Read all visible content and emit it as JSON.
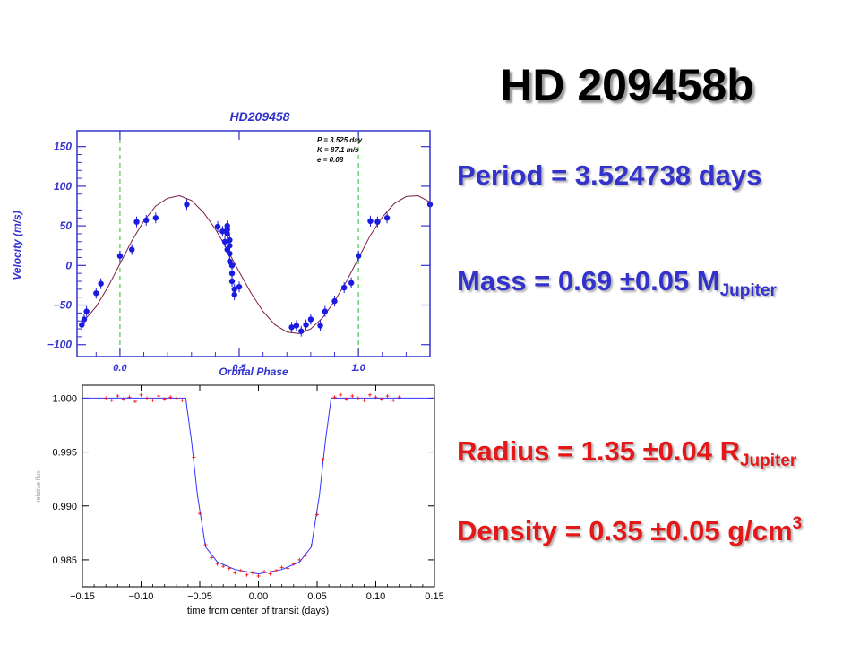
{
  "slide_title": "HD 209458b",
  "facts": {
    "period": {
      "text": "Period = 3.524738 days"
    },
    "mass": {
      "text": "Mass = 0.69 ±0.05 M",
      "sub": "Jupiter"
    },
    "radius": {
      "text": "Radius = 1.35 ±0.04 R",
      "sub": "Jupiter"
    },
    "density": {
      "text": "Density = 0.35 ±0.05 g/cm",
      "sup": "3"
    }
  },
  "colors": {
    "title_text": "#000000",
    "fact_blue": "#3333cc",
    "fact_red": "#e41818",
    "rv_axis": "#3333cc",
    "rv_points": "#1a1ae0",
    "rv_curve": "#7a1f4a",
    "rv_marker_lines": "#44cc44",
    "transit_model": "#3333ff",
    "transit_points": "#ff0000"
  },
  "chart_data": [
    {
      "type": "scatter",
      "title": "HD209458",
      "xlabel": "Orbital Phase",
      "ylabel": "Velocity (m/s)",
      "xlim": [
        -0.18,
        1.3
      ],
      "ylim": [
        -115,
        170
      ],
      "x_ticks": [
        0.0,
        0.5,
        1.0
      ],
      "x_tick_labels": [
        "0.0",
        "0.5",
        "1.0"
      ],
      "y_ticks": [
        150,
        100,
        50,
        0,
        -50,
        -100
      ],
      "y_tick_labels": [
        "150",
        "100",
        "50",
        "0",
        "−50",
        "−100"
      ],
      "annotation_lines": [
        "P = 3.525 day",
        "K = 87.1 m/s",
        "e = 0.08"
      ],
      "vertical_markers": [
        0.0,
        1.0
      ],
      "series": [
        {
          "type": "line",
          "note": "orbit fit",
          "x": [
            -0.16,
            -0.1,
            -0.05,
            0.0,
            0.05,
            0.1,
            0.15,
            0.2,
            0.25,
            0.3,
            0.35,
            0.4,
            0.45,
            0.5,
            0.55,
            0.6,
            0.65,
            0.7,
            0.75,
            0.8,
            0.85,
            0.9,
            0.95,
            1.0,
            1.05,
            1.1,
            1.15,
            1.2,
            1.25,
            1.3
          ],
          "y": [
            -73,
            -52,
            -27,
            2,
            31,
            56,
            75,
            85,
            88,
            82,
            67,
            46,
            20,
            -8,
            -35,
            -58,
            -75,
            -84,
            -86,
            -80,
            -66,
            -45,
            -20,
            9,
            38,
            61,
            78,
            87,
            88,
            80
          ]
        },
        {
          "type": "scatter",
          "note": "radial velocity measurements",
          "x": [
            -0.16,
            -0.15,
            -0.14,
            -0.1,
            -0.08,
            0.0,
            0.05,
            0.07,
            0.11,
            0.15,
            0.28,
            0.41,
            0.43,
            0.44,
            0.45,
            0.45,
            0.45,
            0.45,
            0.46,
            0.46,
            0.46,
            0.46,
            0.47,
            0.47,
            0.47,
            0.48,
            0.48,
            0.5,
            0.72,
            0.74,
            0.76,
            0.78,
            0.8,
            0.84,
            0.86,
            0.9,
            0.94,
            0.97,
            1.0,
            1.05,
            1.08,
            1.12,
            1.3
          ],
          "y": [
            -75,
            -68,
            -58,
            -35,
            -23,
            12,
            20,
            55,
            57,
            60,
            77,
            49,
            43,
            30,
            50,
            45,
            40,
            20,
            32,
            25,
            15,
            5,
            0,
            -10,
            -20,
            -30,
            -37,
            -27,
            -78,
            -76,
            -83,
            -75,
            -68,
            -76,
            -58,
            -45,
            -28,
            -22,
            12,
            56,
            55,
            60,
            77
          ]
        }
      ]
    },
    {
      "type": "scatter",
      "xlabel": "time from center of transit (days)",
      "ylabel": "relative flux",
      "xlim": [
        -0.15,
        0.15
      ],
      "ylim": [
        0.9825,
        1.0012
      ],
      "x_ticks": [
        -0.15,
        -0.1,
        -0.05,
        0.0,
        0.05,
        0.1,
        0.15
      ],
      "x_tick_labels": [
        "−0.15",
        "−0.10",
        "−0.05",
        "0.00",
        "0.05",
        "0.10",
        "0.15"
      ],
      "y_ticks": [
        1.0,
        0.995,
        0.99,
        0.985
      ],
      "y_tick_labels": [
        "1.000",
        "0.995",
        "0.990",
        "0.985"
      ],
      "series": [
        {
          "type": "line",
          "note": "transit model",
          "x": [
            -0.15,
            -0.062,
            -0.057,
            -0.052,
            -0.045,
            -0.035,
            -0.02,
            0.0,
            0.02,
            0.035,
            0.045,
            0.052,
            0.057,
            0.062,
            0.15
          ],
          "y": [
            1.0,
            1.0,
            0.996,
            0.991,
            0.9862,
            0.9848,
            0.9841,
            0.9837,
            0.9841,
            0.9848,
            0.9862,
            0.991,
            0.996,
            1.0,
            1.0
          ]
        },
        {
          "type": "scatter",
          "note": "photometric measurements",
          "x": [
            -0.13,
            -0.125,
            -0.12,
            -0.115,
            -0.11,
            -0.105,
            -0.1,
            -0.095,
            -0.09,
            -0.085,
            -0.08,
            -0.075,
            -0.07,
            -0.065,
            -0.055,
            -0.05,
            -0.045,
            -0.04,
            -0.035,
            -0.03,
            -0.025,
            -0.02,
            -0.015,
            -0.01,
            -0.005,
            0.0,
            0.005,
            0.01,
            0.015,
            0.02,
            0.025,
            0.03,
            0.035,
            0.04,
            0.045,
            0.05,
            0.055,
            0.065,
            0.07,
            0.075,
            0.08,
            0.085,
            0.09,
            0.095,
            0.1,
            0.105,
            0.11,
            0.115,
            0.12
          ],
          "y": [
            1.0,
            0.9998,
            1.0002,
            0.9999,
            1.0001,
            0.9997,
            1.0003,
            1.0,
            0.9998,
            1.0002,
            0.9999,
            1.0001,
            1.0,
            0.9998,
            0.9945,
            0.9893,
            0.9864,
            0.9852,
            0.9846,
            0.9844,
            0.9842,
            0.9838,
            0.984,
            0.9836,
            0.9838,
            0.9835,
            0.9839,
            0.9837,
            0.984,
            0.9843,
            0.9842,
            0.9846,
            0.985,
            0.9854,
            0.9863,
            0.9892,
            0.9943,
            1.0001,
            1.0003,
            0.9999,
            1.0002,
            1.0,
            0.9998,
            1.0003,
            1.0001,
            0.9999,
            1.0002,
            0.9998,
            1.0001
          ]
        }
      ]
    }
  ]
}
